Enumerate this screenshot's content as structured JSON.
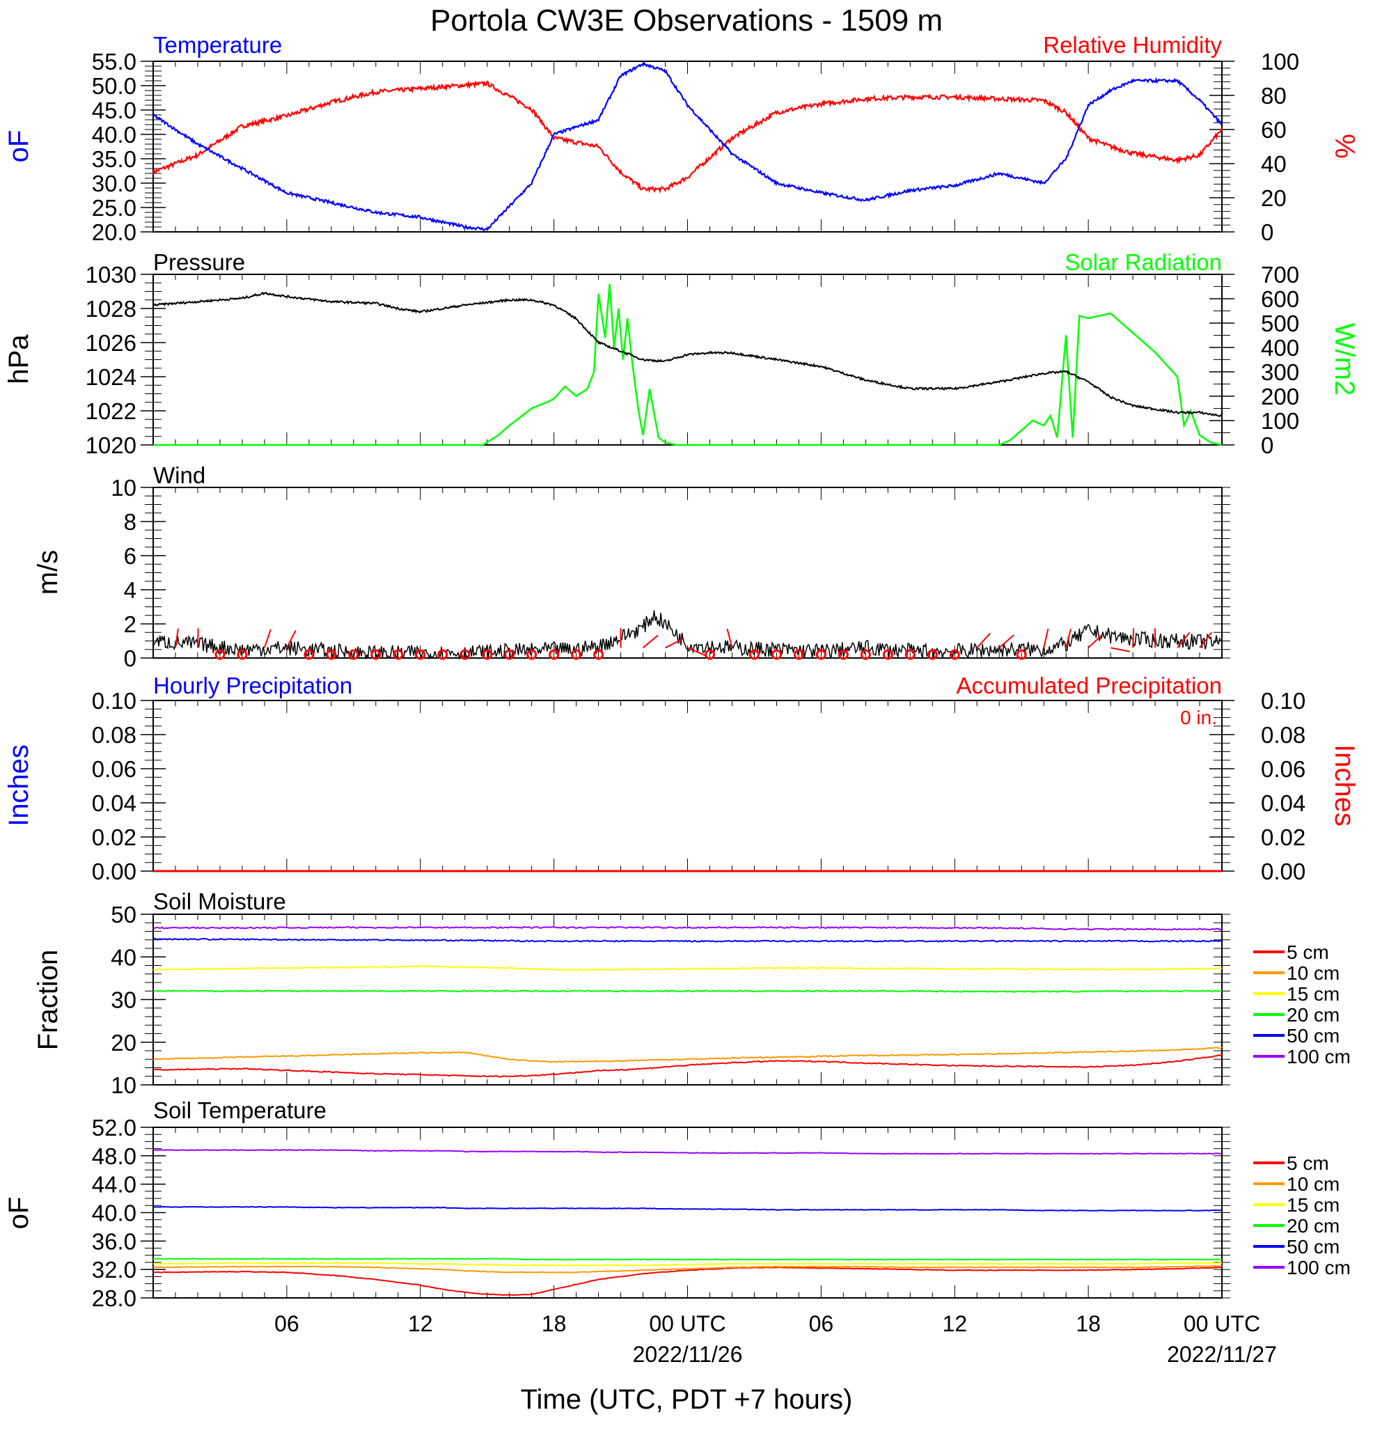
{
  "title": "Portola CW3E Observations - 1509 m",
  "x_axis": {
    "label": "Time (UTC, PDT +7 hours)",
    "ticks": [
      "06",
      "12",
      "18",
      "00 UTC",
      "06",
      "12",
      "18",
      "00 UTC"
    ],
    "dates": [
      "2022/11/26",
      "2022/11/27"
    ]
  },
  "colors": {
    "temperature": "#0000ff",
    "relative_humidity": "#ff0000",
    "pressure": "#000000",
    "solar_radiation": "#00ff00",
    "wind_speed": "#000000",
    "wind_barb": "#ff0000",
    "precip_hourly": "#0000ff",
    "precip_accum": "#ff0000"
  },
  "chart_data": [
    {
      "type": "line",
      "panel": "temperature-rh",
      "left_title": "Temperature",
      "right_title": "Relative Humidity",
      "left_unit": "oF",
      "right_unit": "%",
      "x_hours": [
        0,
        2,
        4,
        6,
        8,
        10,
        12,
        14,
        15,
        17,
        18,
        20,
        21,
        22,
        23,
        24,
        26,
        28,
        30,
        32,
        34,
        36,
        38,
        40,
        41,
        42,
        43,
        44,
        46,
        47,
        48
      ],
      "series": [
        {
          "name": "Temperature",
          "axis": "left",
          "values": [
            44,
            38,
            33,
            28,
            26,
            24,
            23,
            21,
            20.5,
            30,
            40,
            43,
            52,
            54.5,
            53,
            46,
            36,
            30,
            28,
            26.5,
            28.5,
            29.5,
            32,
            30,
            35,
            46,
            49,
            51,
            51,
            47,
            42
          ]
        },
        {
          "name": "Relative Humidity",
          "axis": "right",
          "values": [
            35,
            45,
            62,
            68,
            76,
            82,
            84,
            86,
            87,
            72,
            55,
            50,
            35,
            25,
            25,
            32,
            55,
            70,
            75,
            78,
            79,
            79,
            78,
            77,
            70,
            55,
            50,
            46,
            42,
            45,
            60
          ]
        }
      ],
      "ylim_left": [
        20,
        55
      ],
      "ylim_right": [
        0,
        100
      ],
      "left_ticks": [
        "20.0",
        "25.0",
        "30.0",
        "35.0",
        "40.0",
        "45.0",
        "50.0",
        "55.0"
      ],
      "right_ticks": [
        "0",
        "20",
        "40",
        "60",
        "80",
        "100"
      ]
    },
    {
      "type": "line",
      "panel": "pressure-solar",
      "left_title": "Pressure",
      "right_title": "Solar Radiation",
      "left_unit": "hPa",
      "right_unit": "W/m2",
      "series": [
        {
          "name": "Pressure",
          "axis": "left",
          "x_hours": [
            0,
            2,
            4,
            5,
            6,
            8,
            10,
            11,
            12,
            14,
            16,
            17,
            18,
            19,
            20,
            21,
            22,
            23,
            24,
            25,
            26,
            28,
            30,
            32,
            34,
            36,
            38,
            40,
            41,
            42,
            43,
            44,
            46,
            47,
            48
          ],
          "values": [
            1028.2,
            1028.4,
            1028.6,
            1028.9,
            1028.7,
            1028.4,
            1028.3,
            1028.0,
            1027.8,
            1028.2,
            1028.5,
            1028.5,
            1028.2,
            1027.4,
            1026.0,
            1025.5,
            1025.0,
            1024.9,
            1025.3,
            1025.4,
            1025.4,
            1025.0,
            1024.6,
            1023.8,
            1023.3,
            1023.3,
            1023.7,
            1024.2,
            1024.3,
            1023.7,
            1022.8,
            1022.3,
            1021.9,
            1021.9,
            1021.7
          ]
        },
        {
          "name": "Solar Radiation",
          "axis": "right",
          "x_hours": [
            0,
            14.8,
            15.5,
            16,
            17,
            17.8,
            18,
            18.5,
            19,
            19.5,
            19.8,
            20.0,
            20.3,
            20.5,
            20.7,
            20.9,
            21.1,
            21.3,
            21.5,
            21.8,
            22.0,
            22.3,
            22.7,
            23.0,
            23.5,
            24,
            38,
            38.5,
            39.0,
            39.5,
            40.0,
            40.3,
            40.6,
            41.0,
            41.3,
            41.6,
            42,
            43,
            43.5,
            44,
            45,
            46.0,
            46.3,
            46.6,
            47.0,
            47.5,
            48
          ],
          "values": [
            0,
            0,
            40,
            80,
            150,
            180,
            190,
            240,
            200,
            230,
            300,
            620,
            440,
            660,
            400,
            560,
            350,
            520,
            350,
            140,
            40,
            230,
            30,
            10,
            0,
            0,
            0,
            20,
            60,
            100,
            80,
            120,
            30,
            450,
            30,
            530,
            520,
            540,
            500,
            460,
            380,
            280,
            80,
            140,
            40,
            10,
            0
          ]
        }
      ],
      "ylim_left": [
        1020,
        1030
      ],
      "ylim_right": [
        0,
        700
      ],
      "left_ticks": [
        "1020",
        "1022",
        "1024",
        "1026",
        "1028",
        "1030"
      ],
      "right_ticks": [
        "0",
        "100",
        "200",
        "300",
        "400",
        "500",
        "600",
        "700"
      ]
    },
    {
      "type": "line",
      "panel": "wind",
      "left_title": "Wind",
      "left_unit": "m/s",
      "series": [
        {
          "name": "Wind",
          "x_hours": [
            0,
            2,
            4,
            6,
            8,
            10,
            12,
            14,
            16,
            18,
            19,
            20,
            21,
            22,
            22.5,
            23,
            24,
            26,
            28,
            30,
            32,
            34,
            36,
            38,
            40,
            41,
            42,
            43,
            44,
            46,
            48
          ],
          "values": [
            1.0,
            0.8,
            0.5,
            0.6,
            0.4,
            0.3,
            0.3,
            0.3,
            0.4,
            0.5,
            0.5,
            0.7,
            1.2,
            1.8,
            2.5,
            2.0,
            0.8,
            0.6,
            0.5,
            0.4,
            0.6,
            0.4,
            0.4,
            0.5,
            0.5,
            0.8,
            1.6,
            1.3,
            1.1,
            1.0,
            0.9
          ]
        }
      ],
      "calm_hours": [
        3,
        4,
        7,
        8,
        9,
        10,
        11,
        12,
        13,
        14,
        15,
        16,
        17,
        18,
        19,
        20,
        25,
        27,
        28,
        29,
        30,
        31,
        32,
        33,
        34,
        35,
        36,
        39
      ],
      "ylim": [
        0,
        10
      ],
      "left_ticks": [
        "0",
        "2",
        "4",
        "6",
        "8",
        "10"
      ]
    },
    {
      "type": "line",
      "panel": "precipitation",
      "left_title": "Hourly Precipitation",
      "right_title": "Accumulated Precipitation",
      "total_label": "0 in.",
      "left_unit": "Inches",
      "right_unit": "Inches",
      "series": [
        {
          "name": "Hourly Precipitation",
          "values": [
            0,
            0
          ]
        },
        {
          "name": "Accumulated Precipitation",
          "values": [
            0,
            0
          ]
        }
      ],
      "x_hours": [
        0,
        48
      ],
      "ylim": [
        0,
        0.1
      ],
      "left_ticks": [
        "0.00",
        "0.02",
        "0.04",
        "0.06",
        "0.08",
        "0.10"
      ],
      "right_ticks": [
        "0.00",
        "0.02",
        "0.04",
        "0.06",
        "0.08",
        "0.10"
      ]
    },
    {
      "type": "line",
      "panel": "soil-moisture",
      "left_title": "Soil Moisture",
      "left_unit": "Fraction",
      "x_hours": [
        0,
        4,
        8,
        10,
        12,
        14,
        15,
        16,
        17,
        18,
        20,
        22,
        24,
        26,
        28,
        30,
        32,
        34,
        36,
        38,
        40,
        42,
        44,
        46,
        48
      ],
      "series": [
        {
          "name": "5 cm",
          "color": "#ff0000",
          "values": [
            13.5,
            13.8,
            13.0,
            12.6,
            12.4,
            12.1,
            12.0,
            12.0,
            12.2,
            12.5,
            13.3,
            13.8,
            14.6,
            15.2,
            15.6,
            15.5,
            15.1,
            14.8,
            14.5,
            14.4,
            14.3,
            14.2,
            14.6,
            15.5,
            17.0
          ]
        },
        {
          "name": "10 cm",
          "color": "#ff9900",
          "values": [
            16.0,
            16.5,
            17.0,
            17.3,
            17.5,
            17.6,
            16.8,
            16.0,
            15.6,
            15.4,
            15.5,
            15.8,
            16.0,
            16.3,
            16.5,
            16.7,
            16.9,
            17.0,
            17.1,
            17.3,
            17.5,
            17.7,
            17.9,
            18.2,
            18.7
          ]
        },
        {
          "name": "15 cm",
          "color": "#ffff00",
          "values": [
            37.0,
            37.3,
            37.5,
            37.6,
            37.8,
            37.6,
            37.5,
            37.4,
            37.2,
            37.0,
            37.0,
            37.1,
            37.2,
            37.3,
            37.4,
            37.4,
            37.3,
            37.3,
            37.2,
            37.2,
            37.1,
            37.1,
            37.1,
            37.2,
            37.3
          ]
        },
        {
          "name": "20 cm",
          "color": "#00ff00",
          "values": [
            32.0,
            32.0,
            32.0,
            32.0,
            32.0,
            32.0,
            32.0,
            32.0,
            32.0,
            32.0,
            32.0,
            32.0,
            32.0,
            32.0,
            32.0,
            32.0,
            32.0,
            32.0,
            31.9,
            31.9,
            31.9,
            31.9,
            32.0,
            32.0,
            32.0
          ]
        },
        {
          "name": "50 cm",
          "color": "#0000ff",
          "values": [
            44.2,
            44.1,
            44.0,
            44.0,
            43.9,
            43.9,
            43.8,
            43.8,
            43.7,
            43.7,
            43.7,
            43.7,
            43.7,
            43.7,
            43.7,
            43.7,
            43.7,
            43.7,
            43.7,
            43.7,
            43.7,
            43.7,
            43.7,
            43.7,
            43.7
          ]
        },
        {
          "name": "100 cm",
          "color": "#9900ff",
          "values": [
            46.8,
            46.8,
            46.9,
            46.9,
            46.9,
            46.9,
            46.9,
            46.9,
            46.9,
            46.9,
            46.9,
            46.9,
            46.9,
            46.9,
            46.9,
            46.9,
            46.9,
            46.9,
            46.8,
            46.8,
            46.6,
            46.5,
            46.5,
            46.5,
            46.5
          ]
        }
      ],
      "ylim": [
        10,
        50
      ],
      "left_ticks": [
        "10",
        "20",
        "30",
        "40",
        "50"
      ]
    },
    {
      "type": "line",
      "panel": "soil-temperature",
      "left_title": "Soil Temperature",
      "left_unit": "oF",
      "x_hours": [
        0,
        4,
        6,
        8,
        10,
        12,
        13,
        14,
        15,
        16,
        17,
        18,
        19,
        20,
        22,
        24,
        26,
        28,
        30,
        32,
        34,
        36,
        38,
        40,
        42,
        44,
        46,
        48
      ],
      "series": [
        {
          "name": "5 cm",
          "color": "#ff0000",
          "values": [
            31.6,
            31.7,
            31.6,
            31.2,
            30.6,
            29.8,
            29.2,
            28.8,
            28.5,
            28.4,
            28.5,
            29.2,
            29.9,
            30.6,
            31.4,
            31.9,
            32.2,
            32.3,
            32.2,
            32.1,
            32.0,
            31.9,
            31.9,
            31.9,
            31.9,
            32.0,
            32.1,
            32.3
          ]
        },
        {
          "name": "10 cm",
          "color": "#ff9900",
          "values": [
            32.3,
            32.4,
            32.4,
            32.4,
            32.3,
            32.1,
            32.0,
            31.8,
            31.7,
            31.6,
            31.6,
            31.6,
            31.6,
            31.7,
            31.9,
            32.1,
            32.3,
            32.4,
            32.4,
            32.4,
            32.3,
            32.3,
            32.3,
            32.3,
            32.3,
            32.3,
            32.4,
            32.5
          ]
        },
        {
          "name": "15 cm",
          "color": "#ffff00",
          "values": [
            32.8,
            32.9,
            32.9,
            32.9,
            32.9,
            32.8,
            32.8,
            32.7,
            32.7,
            32.6,
            32.6,
            32.6,
            32.6,
            32.6,
            32.6,
            32.7,
            32.8,
            32.8,
            32.8,
            32.8,
            32.8,
            32.8,
            32.8,
            32.8,
            32.8,
            32.8,
            32.9,
            32.9
          ]
        },
        {
          "name": "20 cm",
          "color": "#00ff00",
          "values": [
            33.5,
            33.5,
            33.5,
            33.5,
            33.5,
            33.5,
            33.5,
            33.5,
            33.5,
            33.5,
            33.4,
            33.4,
            33.4,
            33.4,
            33.4,
            33.4,
            33.4,
            33.4,
            33.4,
            33.4,
            33.4,
            33.4,
            33.4,
            33.4,
            33.4,
            33.4,
            33.4,
            33.4
          ]
        },
        {
          "name": "50 cm",
          "color": "#0000ff",
          "values": [
            40.8,
            40.8,
            40.8,
            40.7,
            40.7,
            40.7,
            40.7,
            40.6,
            40.6,
            40.6,
            40.6,
            40.6,
            40.6,
            40.6,
            40.6,
            40.5,
            40.5,
            40.4,
            40.4,
            40.4,
            40.4,
            40.4,
            40.4,
            40.3,
            40.3,
            40.3,
            40.3,
            40.3
          ]
        },
        {
          "name": "100 cm",
          "color": "#9900ff",
          "values": [
            48.8,
            48.8,
            48.8,
            48.8,
            48.7,
            48.7,
            48.7,
            48.6,
            48.6,
            48.6,
            48.6,
            48.6,
            48.6,
            48.5,
            48.5,
            48.4,
            48.4,
            48.4,
            48.4,
            48.3,
            48.3,
            48.3,
            48.3,
            48.3,
            48.3,
            48.3,
            48.3,
            48.3
          ]
        }
      ],
      "ylim": [
        28,
        52
      ],
      "left_ticks": [
        "28.0",
        "32.0",
        "36.0",
        "40.0",
        "44.0",
        "48.0",
        "52.0"
      ]
    }
  ]
}
